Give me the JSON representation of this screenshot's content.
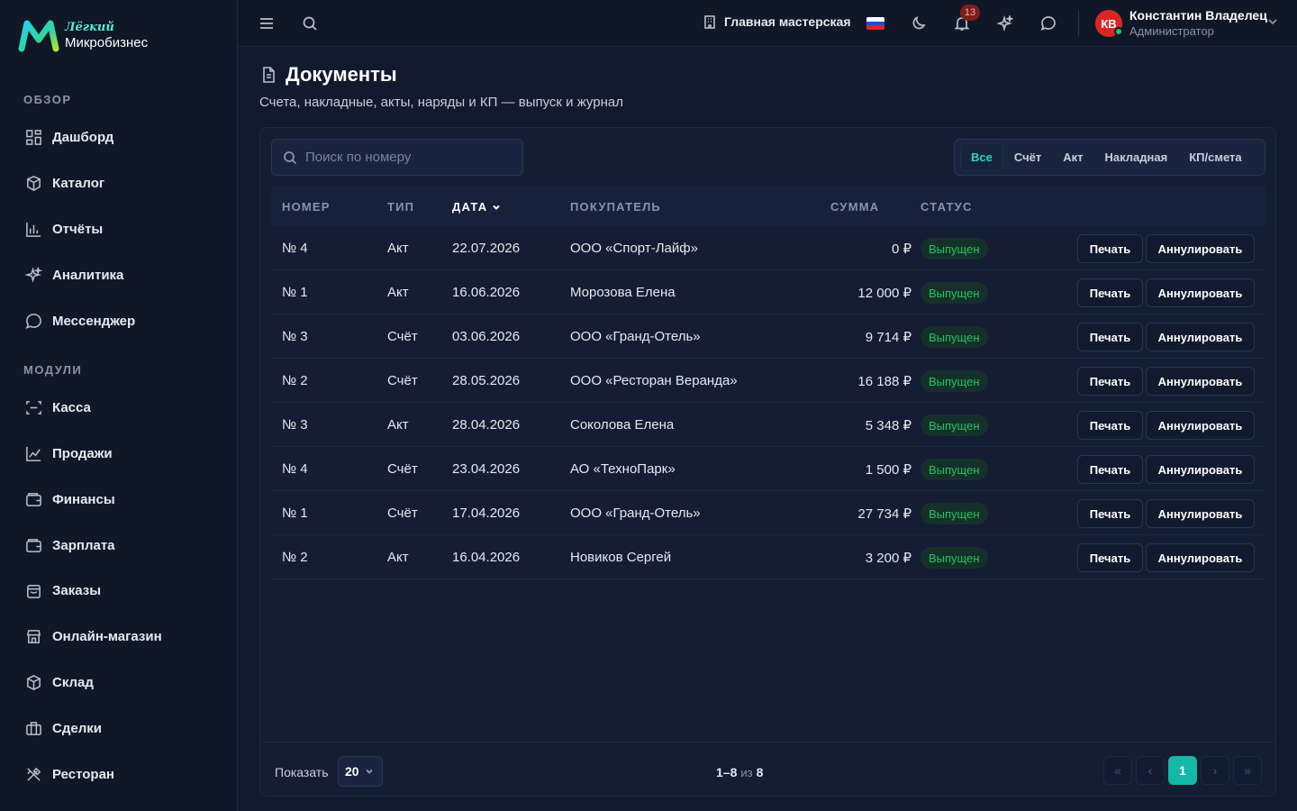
{
  "brand": {
    "top": "Лёгкий",
    "bottom": "Микробизнес"
  },
  "sidebar": {
    "section_overview": "ОБЗОР",
    "section_modules": "МОДУЛИ",
    "overview_items": [
      {
        "label": "Дашборд",
        "icon": "dashboard-icon"
      },
      {
        "label": "Каталог",
        "icon": "catalog-icon"
      },
      {
        "label": "Отчёты",
        "icon": "reports-icon"
      },
      {
        "label": "Аналитика",
        "icon": "analytics-icon"
      },
      {
        "label": "Мессенджер",
        "icon": "messenger-icon"
      }
    ],
    "module_items": [
      {
        "label": "Касса",
        "icon": "cashier-icon"
      },
      {
        "label": "Продажи",
        "icon": "sales-icon"
      },
      {
        "label": "Финансы",
        "icon": "finance-icon"
      },
      {
        "label": "Зарплата",
        "icon": "salary-icon"
      },
      {
        "label": "Заказы",
        "icon": "orders-icon"
      },
      {
        "label": "Онлайн-магазин",
        "icon": "store-icon"
      },
      {
        "label": "Склад",
        "icon": "warehouse-icon"
      },
      {
        "label": "Сделки",
        "icon": "deals-icon"
      },
      {
        "label": "Ресторан",
        "icon": "restaurant-icon"
      }
    ]
  },
  "topbar": {
    "workshop": "Главная мастерская",
    "notifications_count": "13",
    "user_initials": "КВ",
    "user_name": "Константин Владелец",
    "user_role": "Администратор",
    "flag_colors": [
      "#ffffff",
      "#1c4fd8",
      "#dc2626"
    ]
  },
  "page": {
    "title": "Документы",
    "subtitle": "Счета, накладные, акты, наряды и КП — выпуск и журнал"
  },
  "search": {
    "placeholder": "Поиск по номеру"
  },
  "filters": [
    "Все",
    "Счёт",
    "Акт",
    "Накладная",
    "КП/смета"
  ],
  "table": {
    "headers": {
      "number": "НОМЕР",
      "type": "ТИП",
      "date": "ДАТА",
      "buyer": "ПОКУПАТЕЛЬ",
      "sum": "СУММА",
      "status": "СТАТУС"
    },
    "rows": [
      {
        "number": "№ 4",
        "type": "Акт",
        "date": "22.07.2026",
        "buyer": "ООО «Спорт-Лайф»",
        "sum": "0 ₽",
        "status": "Выпущен",
        "print": "Печать",
        "cancel": "Аннулировать"
      },
      {
        "number": "№ 1",
        "type": "Акт",
        "date": "16.06.2026",
        "buyer": "Морозова Елена",
        "sum": "12 000 ₽",
        "status": "Выпущен",
        "print": "Печать",
        "cancel": "Аннулировать"
      },
      {
        "number": "№ 3",
        "type": "Счёт",
        "date": "03.06.2026",
        "buyer": "ООО «Гранд-Отель»",
        "sum": "9 714 ₽",
        "status": "Выпущен",
        "print": "Печать",
        "cancel": "Аннулировать"
      },
      {
        "number": "№ 2",
        "type": "Счёт",
        "date": "28.05.2026",
        "buyer": "ООО «Ресторан Веранда»",
        "sum": "16 188 ₽",
        "status": "Выпущен",
        "print": "Печать",
        "cancel": "Аннулировать"
      },
      {
        "number": "№ 3",
        "type": "Акт",
        "date": "28.04.2026",
        "buyer": "Соколова Елена",
        "sum": "5 348 ₽",
        "status": "Выпущен",
        "print": "Печать",
        "cancel": "Аннулировать"
      },
      {
        "number": "№ 4",
        "type": "Счёт",
        "date": "23.04.2026",
        "buyer": "АО «ТехноПарк»",
        "sum": "1 500 ₽",
        "status": "Выпущен",
        "print": "Печать",
        "cancel": "Аннулировать"
      },
      {
        "number": "№ 1",
        "type": "Счёт",
        "date": "17.04.2026",
        "buyer": "ООО «Гранд-Отель»",
        "sum": "27 734 ₽",
        "status": "Выпущен",
        "print": "Печать",
        "cancel": "Аннулировать"
      },
      {
        "number": "№ 2",
        "type": "Акт",
        "date": "16.04.2026",
        "buyer": "Новиков Сергей",
        "sum": "3 200 ₽",
        "status": "Выпущен",
        "print": "Печать",
        "cancel": "Аннулировать"
      }
    ]
  },
  "footer": {
    "show_label": "Показать",
    "per_page": "20",
    "range": "1–8",
    "of": "из",
    "total": "8",
    "page_first": "«",
    "page_prev": "‹",
    "current_page": "1",
    "page_next": "›",
    "page_last": "»"
  },
  "colors": {
    "accent": "#14b8a6",
    "status_green": "#22c55e",
    "background": "#111a2e"
  }
}
